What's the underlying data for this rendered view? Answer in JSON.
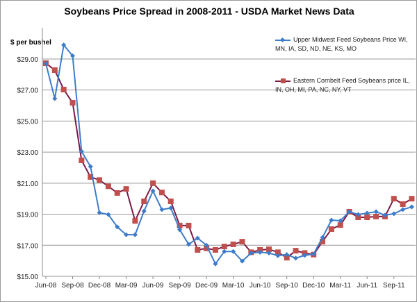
{
  "chart_data": {
    "type": "line",
    "title": "Soybeans Price Spread in 2008-2011 - USDA Market News Data",
    "ylabel": "$ per bushel",
    "xlabel": "",
    "ylim": [
      15,
      31
    ],
    "yticks": [
      "$15.00",
      "$17.00",
      "$19.00",
      "$21.00",
      "$23.00",
      "$25.00",
      "$27.00",
      "$29.00"
    ],
    "ytick_values": [
      15,
      17,
      19,
      21,
      23,
      25,
      27,
      29
    ],
    "grid": true,
    "legend_position": "top-right",
    "x": [
      "Jun-08",
      "Jul-08",
      "Aug-08",
      "Sep-08",
      "Oct-08",
      "Nov-08",
      "Dec-08",
      "Jan-09",
      "Feb-09",
      "Mar-09",
      "Apr-09",
      "May-09",
      "Jun-09",
      "Jul-09",
      "Aug-09",
      "Sep-09",
      "Oct-09",
      "Nov-09",
      "Dec-09",
      "Jan-10",
      "Feb-10",
      "Mar-10",
      "Apr-10",
      "May-10",
      "Jun-10",
      "Jul-10",
      "Aug-10",
      "Sep-10",
      "Oct-10",
      "Nov-10",
      "Dec-10",
      "Jan-11",
      "Feb-11",
      "Mar-11",
      "Apr-11",
      "May-11",
      "Jun-11",
      "Jul-11",
      "Aug-11",
      "Sep-11",
      "Oct-11",
      "Nov-11"
    ],
    "xtick_labels": [
      "Jun-08",
      "Sep-08",
      "Dec-08",
      "Mar-09",
      "Jun-09",
      "Sep-09",
      "Dec-09",
      "Mar-10",
      "Jun-10",
      "Sep-10",
      "Dec-10",
      "Mar-11",
      "Jun-11",
      "Sep-11"
    ],
    "series": [
      {
        "name": "Upper Midwest    Feed Soybeans Price   WI, MN, IA, SD, ND, NE, KS, MO",
        "color": "#3d7cc9",
        "marker": "diamond",
        "values": [
          28.7,
          26.45,
          29.9,
          29.2,
          23.05,
          22.07,
          19.1,
          18.98,
          18.18,
          17.68,
          17.68,
          19.2,
          20.5,
          19.3,
          19.4,
          18.0,
          17.06,
          17.46,
          17.0,
          15.8,
          16.6,
          16.6,
          15.98,
          16.5,
          16.55,
          16.5,
          16.33,
          16.4,
          16.17,
          16.35,
          16.43,
          17.5,
          18.62,
          18.58,
          19.16,
          18.98,
          19.07,
          19.16,
          18.94,
          19.03,
          19.3,
          19.47
        ]
      },
      {
        "name": "Eastern Cornbelt    Feed Soybeans price   IL, IN, OH, MI, PA, NC, NY, VT",
        "color": "#7b1846",
        "marker_color": "#c0504d",
        "marker": "square",
        "values": [
          28.73,
          28.28,
          27.03,
          26.18,
          22.47,
          21.4,
          21.2,
          20.8,
          20.37,
          20.63,
          18.57,
          19.83,
          21.0,
          20.4,
          19.83,
          18.27,
          18.27,
          16.7,
          16.8,
          16.7,
          16.92,
          17.06,
          17.23,
          16.55,
          16.7,
          16.74,
          16.55,
          16.2,
          16.65,
          16.5,
          16.4,
          17.24,
          18.04,
          18.3,
          19.16,
          18.8,
          18.8,
          18.85,
          18.85,
          20.0,
          19.65,
          20.0
        ]
      }
    ]
  }
}
